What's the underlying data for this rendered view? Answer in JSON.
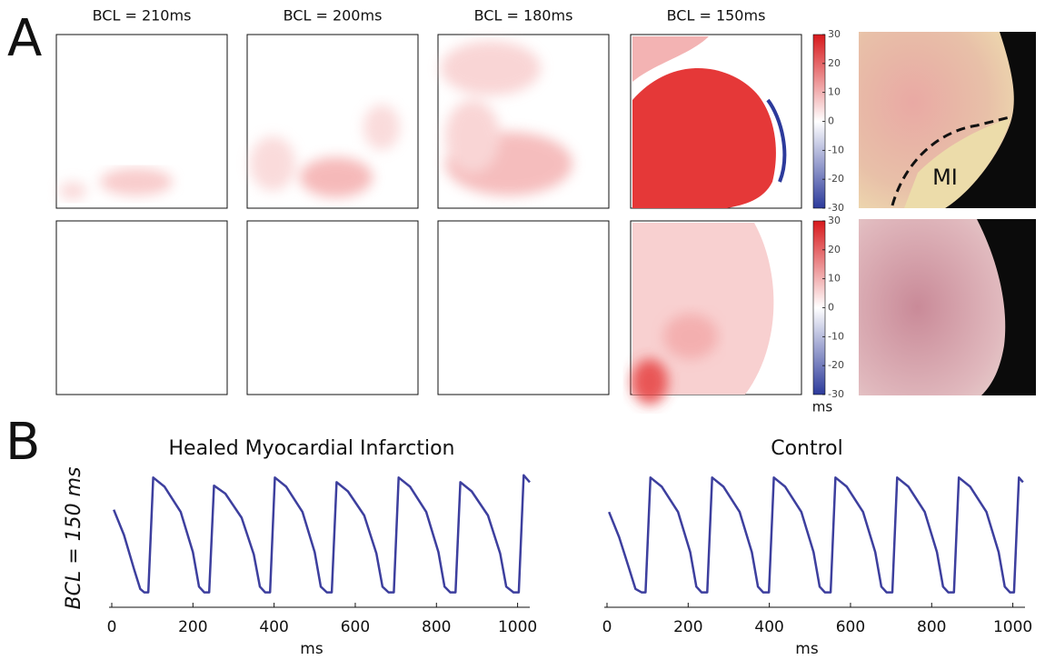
{
  "panel_a": {
    "label": "A",
    "columns": [
      "BCL = 210ms",
      "BCL = 200ms",
      "BCL = 180ms",
      "BCL = 150ms"
    ],
    "colorbar": {
      "lim": [
        -30,
        30
      ],
      "ticks": [
        30,
        20,
        10,
        0,
        -10,
        -20,
        -30
      ],
      "unit": "ms"
    },
    "photo_label": "MI"
  },
  "panel_b": {
    "label": "B",
    "ylabel": "BCL = 150 ms"
  },
  "chart_data": [
    {
      "type": "line",
      "title": "Healed Myocardial Infarction",
      "xlabel": "ms",
      "color": "#3d3f9e",
      "xlim": [
        0,
        1030
      ],
      "xticks": [
        0,
        200,
        400,
        600,
        800,
        1000
      ],
      "ylim": [
        -0.13,
        1.05
      ],
      "x": [
        5,
        30,
        55,
        70,
        80,
        90,
        102,
        130,
        170,
        200,
        215,
        228,
        240,
        252,
        280,
        320,
        350,
        365,
        378,
        390,
        402,
        430,
        470,
        500,
        515,
        530,
        542,
        554,
        582,
        622,
        652,
        667,
        682,
        695,
        707,
        735,
        775,
        805,
        820,
        834,
        847,
        859,
        887,
        927,
        957,
        972,
        990,
        1003,
        1015,
        1030
      ],
      "values": [
        0.72,
        0.5,
        0.2,
        0.03,
        0,
        0,
        1,
        0.92,
        0.7,
        0.35,
        0.05,
        0,
        0,
        0.93,
        0.86,
        0.65,
        0.33,
        0.05,
        0,
        0,
        1,
        0.92,
        0.7,
        0.35,
        0.05,
        0,
        0,
        0.96,
        0.88,
        0.67,
        0.34,
        0.05,
        0,
        0,
        1,
        0.92,
        0.7,
        0.35,
        0.05,
        0,
        0,
        0.96,
        0.88,
        0.67,
        0.34,
        0.05,
        0,
        0,
        1.02,
        0.96
      ]
    },
    {
      "type": "line",
      "title": "Control",
      "xlabel": "ms",
      "color": "#3d3f9e",
      "xlim": [
        0,
        1030
      ],
      "xticks": [
        0,
        200,
        400,
        600,
        800,
        1000
      ],
      "ylim": [
        -0.13,
        1.05
      ],
      "x": [
        5,
        30,
        55,
        70,
        85,
        95,
        107,
        135,
        175,
        205,
        220,
        233,
        247,
        259,
        287,
        327,
        357,
        372,
        385,
        399,
        411,
        439,
        479,
        509,
        524,
        537,
        551,
        563,
        591,
        631,
        661,
        676,
        689,
        703,
        715,
        743,
        783,
        813,
        828,
        841,
        855,
        867,
        895,
        935,
        965,
        980,
        993,
        1003,
        1015,
        1025
      ],
      "values": [
        0.7,
        0.48,
        0.2,
        0.03,
        0,
        0,
        1,
        0.92,
        0.7,
        0.35,
        0.05,
        0,
        0,
        1,
        0.92,
        0.7,
        0.35,
        0.05,
        0,
        0,
        1,
        0.92,
        0.7,
        0.35,
        0.05,
        0,
        0,
        1,
        0.92,
        0.7,
        0.35,
        0.05,
        0,
        0,
        1,
        0.92,
        0.7,
        0.35,
        0.05,
        0,
        0,
        1,
        0.92,
        0.7,
        0.35,
        0.05,
        0,
        0,
        1,
        0.96
      ]
    }
  ]
}
